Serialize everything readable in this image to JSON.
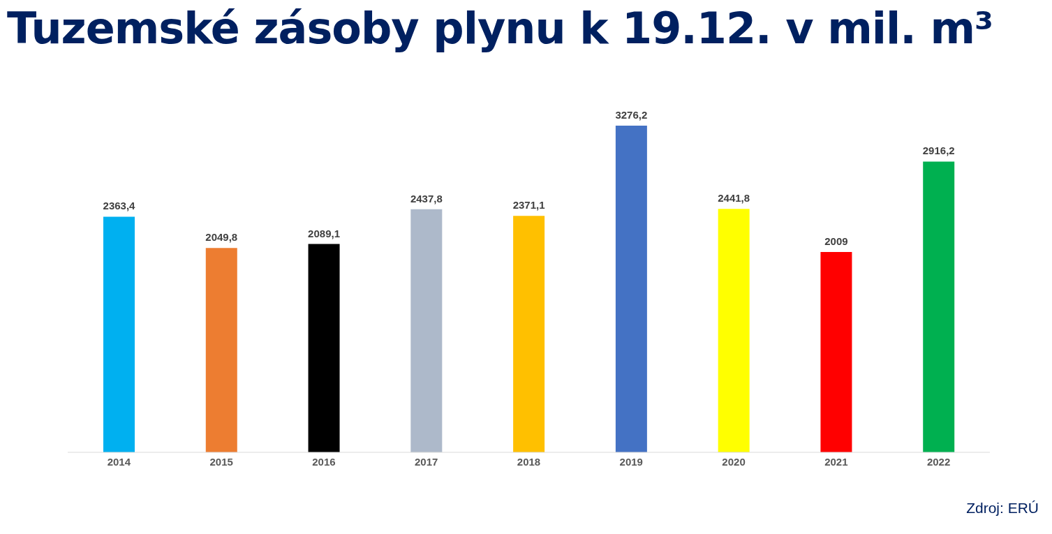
{
  "chart_data": {
    "type": "bar",
    "title": "Tuzemské zásoby plynu k 19.12. v mil. m³",
    "categories": [
      "2014",
      "2015",
      "2016",
      "2017",
      "2018",
      "2019",
      "2020",
      "2021",
      "2022"
    ],
    "values": [
      2363.4,
      2049.8,
      2089.1,
      2437.8,
      2371.1,
      3276.2,
      2441.8,
      2009,
      2916.2
    ],
    "colors": [
      "#00b0f0",
      "#ed7d31",
      "#000000",
      "#adb9ca",
      "#ffc000",
      "#4472c4",
      "#ffff00",
      "#ff0000",
      "#00b050"
    ],
    "value_labels": [
      "2363,4",
      "2049,8",
      "2089,1",
      "2437,8",
      "2371,1",
      "3276,2",
      "2441,8",
      "2009",
      "2916,2"
    ],
    "annotations": [
      "Zdroj: ERÚ"
    ]
  }
}
